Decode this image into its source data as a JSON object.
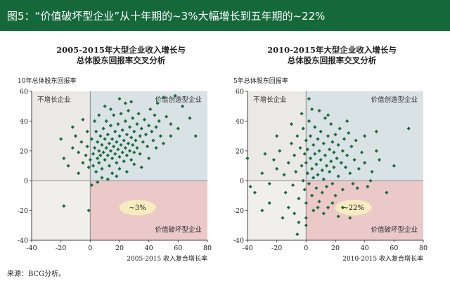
{
  "header": {
    "title": "图5：“价值破坏型企业”从十年期的~3%大幅增长到五年期的~22%"
  },
  "source": "来源：BCG分析。",
  "colors": {
    "header_bg": "#15683a",
    "points": "#1d6b3a",
    "q_top_left": "#ebe9e5",
    "q_top_right": "#d9e2e5",
    "q_bottom_left": "#f1efec",
    "q_bottom_right": "#ecc9c9",
    "badge": "#f7ecc0"
  },
  "chart_data": [
    {
      "type": "scatter",
      "title_lines": [
        "2005-2015年大型企业收入增长与",
        "总体股东回报率交叉分析"
      ],
      "ylabel": "10年总体股东回报率",
      "xlabel": "2005-2015 收入复合增长率",
      "xlim": [
        -40,
        80
      ],
      "ylim": [
        -40,
        60
      ],
      "xticks": [
        -40,
        -20,
        0,
        20,
        40,
        60,
        80
      ],
      "yticks": [
        -40,
        -20,
        0,
        20,
        40,
        60
      ],
      "quadrant_labels": {
        "top_left": "不增长企业",
        "top_right": "价值创造型企业",
        "bottom_right": "价值破坏型企业"
      },
      "annotation": "~3%",
      "points": [
        [
          -20,
          28
        ],
        [
          -18,
          15
        ],
        [
          -15,
          10
        ],
        [
          -12,
          22
        ],
        [
          -10,
          30
        ],
        [
          -8,
          19
        ],
        [
          -6,
          26
        ],
        [
          -5,
          12
        ],
        [
          -3,
          17
        ],
        [
          -2,
          23
        ],
        [
          -1,
          9
        ],
        [
          0,
          14
        ],
        [
          1,
          28
        ],
        [
          2,
          18
        ],
        [
          2,
          10
        ],
        [
          3,
          22
        ],
        [
          4,
          33
        ],
        [
          4,
          6
        ],
        [
          5,
          15
        ],
        [
          5,
          26
        ],
        [
          6,
          20
        ],
        [
          6,
          12
        ],
        [
          7,
          30
        ],
        [
          7,
          17
        ],
        [
          8,
          24
        ],
        [
          8,
          8
        ],
        [
          9,
          35
        ],
        [
          9,
          19
        ],
        [
          10,
          28
        ],
        [
          10,
          14
        ],
        [
          11,
          22
        ],
        [
          11,
          40
        ],
        [
          12,
          17
        ],
        [
          12,
          31
        ],
        [
          13,
          25
        ],
        [
          13,
          10
        ],
        [
          14,
          20
        ],
        [
          14,
          37
        ],
        [
          15,
          28
        ],
        [
          15,
          15
        ],
        [
          16,
          23
        ],
        [
          16,
          44
        ],
        [
          17,
          18
        ],
        [
          17,
          33
        ],
        [
          18,
          26
        ],
        [
          18,
          12
        ],
        [
          19,
          21
        ],
        [
          19,
          38
        ],
        [
          20,
          30
        ],
        [
          20,
          16
        ],
        [
          21,
          24
        ],
        [
          21,
          45
        ],
        [
          22,
          19
        ],
        [
          22,
          34
        ],
        [
          23,
          27
        ],
        [
          23,
          13
        ],
        [
          24,
          22
        ],
        [
          24,
          40
        ],
        [
          25,
          31
        ],
        [
          25,
          17
        ],
        [
          26,
          25
        ],
        [
          26,
          47
        ],
        [
          27,
          20
        ],
        [
          27,
          36
        ],
        [
          28,
          29
        ],
        [
          28,
          14
        ],
        [
          29,
          24
        ],
        [
          29,
          42
        ],
        [
          30,
          33
        ],
        [
          30,
          19
        ],
        [
          31,
          27
        ],
        [
          32,
          38
        ],
        [
          32,
          22
        ],
        [
          33,
          45
        ],
        [
          34,
          30
        ],
        [
          34,
          18
        ],
        [
          35,
          35
        ],
        [
          36,
          26
        ],
        [
          37,
          41
        ],
        [
          38,
          31
        ],
        [
          39,
          23
        ],
        [
          40,
          37
        ],
        [
          41,
          48
        ],
        [
          42,
          33
        ],
        [
          43,
          27
        ],
        [
          44,
          44
        ],
        [
          45,
          36
        ],
        [
          46,
          52
        ],
        [
          47,
          40
        ],
        [
          48,
          30
        ],
        [
          50,
          56
        ],
        [
          52,
          43
        ],
        [
          55,
          38
        ],
        [
          58,
          57
        ],
        [
          63,
          50
        ],
        [
          68,
          42
        ],
        [
          72,
          30
        ],
        [
          3,
          40
        ],
        [
          -2,
          33
        ],
        [
          6,
          44
        ],
        [
          10,
          50
        ],
        [
          15,
          5
        ],
        [
          20,
          8
        ],
        [
          25,
          6
        ],
        [
          30,
          11
        ],
        [
          35,
          9
        ],
        [
          8,
          2
        ],
        [
          12,
          1
        ],
        [
          18,
          3
        ],
        [
          -8,
          5
        ],
        [
          -18,
          -17
        ],
        [
          -1,
          -20
        ],
        [
          1,
          -3
        ],
        [
          5,
          -1
        ],
        [
          40,
          15
        ],
        [
          45,
          22
        ],
        [
          50,
          25
        ],
        [
          55,
          30
        ],
        [
          60,
          35
        ],
        [
          20,
          55
        ],
        [
          28,
          53
        ],
        [
          -12,
          36
        ],
        [
          -5,
          41
        ],
        [
          14,
          48
        ],
        [
          24,
          52
        ]
      ]
    },
    {
      "type": "scatter",
      "title_lines": [
        "2010-2015年大型企业收入增长与",
        "总体股东回报率交叉分析"
      ],
      "ylabel": "5年总体股东回报率",
      "xlabel": "2010-2015 收入复合增长率",
      "xlim": [
        -40,
        80
      ],
      "ylim": [
        -40,
        60
      ],
      "xticks": [
        -40,
        -20,
        0,
        20,
        40,
        60,
        80
      ],
      "yticks": [
        -40,
        -20,
        0,
        20,
        40,
        60
      ],
      "quadrant_labels": {
        "top_left": "不增长企业",
        "top_right": "价值创造型企业",
        "bottom_right": "价值破坏型企业"
      },
      "annotation": "~22%",
      "points": [
        [
          -40,
          15
        ],
        [
          -38,
          -4
        ],
        [
          -25,
          -2
        ],
        [
          -22,
          14
        ],
        [
          -20,
          8
        ],
        [
          -18,
          20
        ],
        [
          -15,
          4
        ],
        [
          -14,
          -8
        ],
        [
          -12,
          12
        ],
        [
          -10,
          25
        ],
        [
          -9,
          -3
        ],
        [
          -8,
          17
        ],
        [
          -7,
          6
        ],
        [
          -6,
          30
        ],
        [
          -5,
          -12
        ],
        [
          -4,
          22
        ],
        [
          -3,
          10
        ],
        [
          -2,
          35
        ],
        [
          -2,
          0
        ],
        [
          -1,
          18
        ],
        [
          -1,
          -6
        ],
        [
          0,
          12
        ],
        [
          0,
          27
        ],
        [
          0,
          -15
        ],
        [
          1,
          5
        ],
        [
          1,
          21
        ],
        [
          2,
          40
        ],
        [
          2,
          -2
        ],
        [
          3,
          15
        ],
        [
          3,
          30
        ],
        [
          4,
          8
        ],
        [
          4,
          -10
        ],
        [
          5,
          24
        ],
        [
          5,
          2
        ],
        [
          6,
          18
        ],
        [
          6,
          36
        ],
        [
          7,
          11
        ],
        [
          7,
          -5
        ],
        [
          8,
          28
        ],
        [
          8,
          4
        ],
        [
          9,
          20
        ],
        [
          9,
          -14
        ],
        [
          10,
          14
        ],
        [
          10,
          33
        ],
        [
          11,
          7
        ],
        [
          11,
          -8
        ],
        [
          12,
          25
        ],
        [
          12,
          1
        ],
        [
          13,
          17
        ],
        [
          13,
          42
        ],
        [
          14,
          10
        ],
        [
          14,
          -4
        ],
        [
          15,
          30
        ],
        [
          15,
          -18
        ],
        [
          16,
          21
        ],
        [
          16,
          6
        ],
        [
          17,
          13
        ],
        [
          17,
          38
        ],
        [
          18,
          26
        ],
        [
          18,
          -2
        ],
        [
          19,
          9
        ],
        [
          19,
          19
        ],
        [
          20,
          31
        ],
        [
          20,
          -10
        ],
        [
          21,
          15
        ],
        [
          22,
          24
        ],
        [
          22,
          3
        ],
        [
          23,
          35
        ],
        [
          24,
          12
        ],
        [
          25,
          20
        ],
        [
          25,
          -6
        ],
        [
          26,
          28
        ],
        [
          27,
          9
        ],
        [
          28,
          17
        ],
        [
          29,
          32
        ],
        [
          30,
          5
        ],
        [
          31,
          23
        ],
        [
          32,
          -2
        ],
        [
          33,
          14
        ],
        [
          34,
          27
        ],
        [
          36,
          8
        ],
        [
          38,
          19
        ],
        [
          40,
          12
        ],
        [
          42,
          -4
        ],
        [
          45,
          6
        ],
        [
          48,
          20
        ],
        [
          50,
          14
        ],
        [
          55,
          -8
        ],
        [
          60,
          10
        ],
        [
          70,
          35
        ],
        [
          -35,
          -8
        ],
        [
          -30,
          5
        ],
        [
          -28,
          18
        ],
        [
          -25,
          -15
        ],
        [
          -16,
          -25
        ],
        [
          -12,
          -18
        ],
        [
          -8,
          -22
        ],
        [
          -5,
          -28
        ],
        [
          0,
          -25
        ],
        [
          5,
          -20
        ],
        [
          8,
          -18
        ],
        [
          12,
          -22
        ],
        [
          18,
          -15
        ],
        [
          25,
          -18
        ],
        [
          -3,
          45
        ],
        [
          4,
          48
        ],
        [
          15,
          44
        ],
        [
          28,
          40
        ],
        [
          40,
          30
        ],
        [
          48,
          33
        ],
        [
          -10,
          38
        ],
        [
          -20,
          30
        ],
        [
          -30,
          -20
        ],
        [
          35,
          -5
        ],
        [
          44,
          0
        ],
        [
          2,
          55
        ],
        [
          9,
          47
        ],
        [
          22,
          -24
        ],
        [
          30,
          -25
        ],
        [
          -6,
          -36
        ],
        [
          0,
          -30
        ]
      ]
    }
  ]
}
